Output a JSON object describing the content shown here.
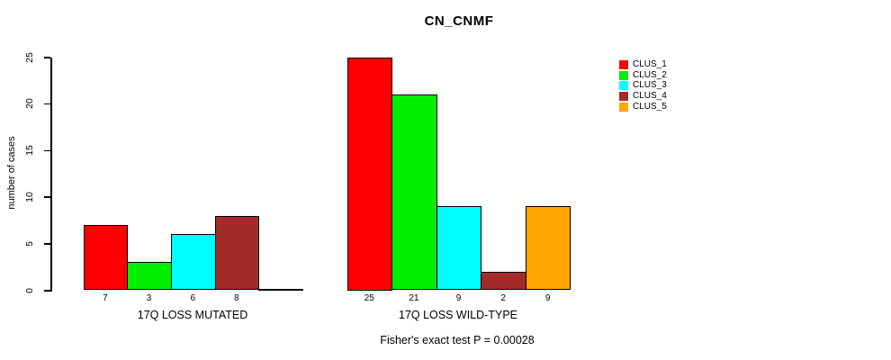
{
  "title": "CN_CNMF",
  "footer": "Fisher's exact test P = 0.00028",
  "y_axis": {
    "label": "number of cases",
    "ticks": [
      0,
      5,
      10,
      15,
      20,
      25
    ]
  },
  "chart_data": {
    "type": "bar",
    "title": "CN_CNMF",
    "ylabel": "number of cases",
    "ylim": [
      0,
      25
    ],
    "grid": false,
    "legend_position": "right",
    "categories": [
      "17Q LOSS MUTATED",
      "17Q LOSS WILD-TYPE"
    ],
    "series": [
      {
        "name": "CLUS_1",
        "color": "#FF0000",
        "values": [
          7,
          25
        ]
      },
      {
        "name": "CLUS_2",
        "color": "#00EE00",
        "values": [
          3,
          21
        ]
      },
      {
        "name": "CLUS_3",
        "color": "#00FFFF",
        "values": [
          6,
          9
        ]
      },
      {
        "name": "CLUS_4",
        "color": "#A52A2A",
        "values": [
          8,
          2
        ]
      },
      {
        "name": "CLUS_5",
        "color": "#FFA500",
        "values": [
          0,
          9
        ]
      }
    ],
    "bar_labels": [
      [
        "7",
        "3",
        "6",
        "8",
        ""
      ],
      [
        "25",
        "21",
        "9",
        "2",
        "9"
      ]
    ],
    "annotation": "Fisher's exact test P = 0.00028"
  }
}
